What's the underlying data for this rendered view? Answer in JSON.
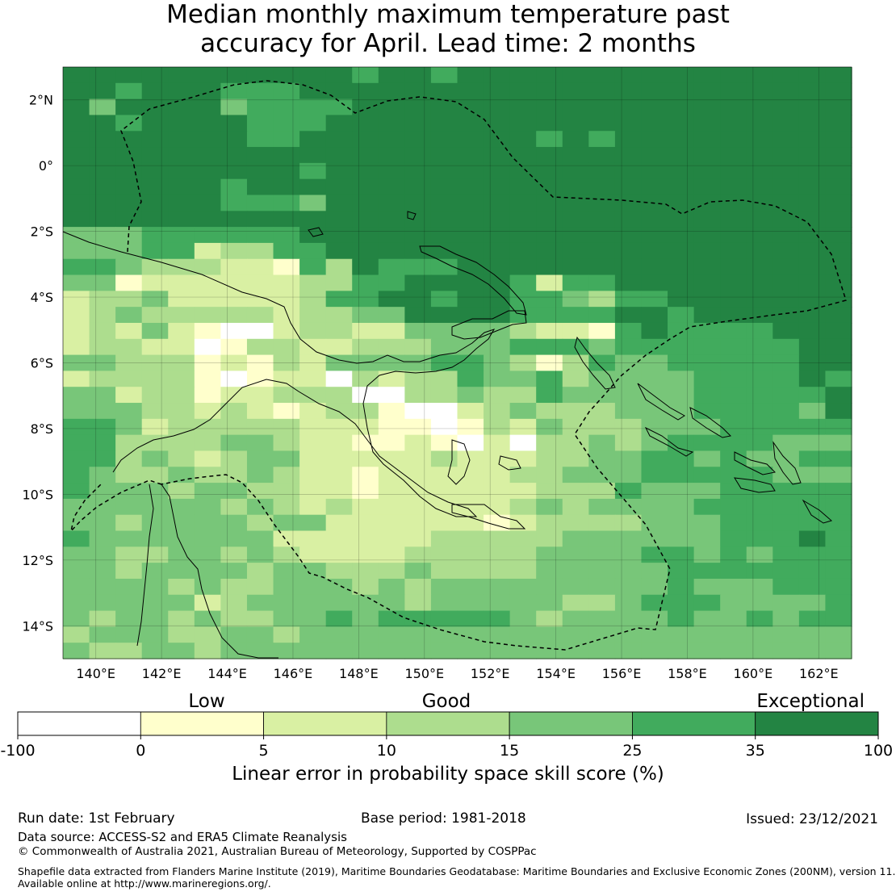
{
  "title": {
    "line1": "Median monthly maximum temperature past",
    "line2": "accuracy for April. Lead time: 2 months"
  },
  "map": {
    "lon_range": [
      139,
      163
    ],
    "lat_range": [
      -15,
      3
    ],
    "lon_ticks": [
      "140°E",
      "142°E",
      "144°E",
      "146°E",
      "148°E",
      "150°E",
      "152°E",
      "154°E",
      "156°E",
      "158°E",
      "160°E",
      "162°E"
    ],
    "lat_ticks": [
      "2°N",
      "0°",
      "2°S",
      "4°S",
      "6°S",
      "8°S",
      "10°S",
      "12°S",
      "14°S"
    ],
    "ocean_color": "#238b45",
    "grid_rows": [
      "666666666665665666666666666666",
      "665666555666666666666666666666",
      "646666455556666666666666666666",
      "665666655566666666666666666666",
      "666666655666666666565666666666",
      "666666666666666666666666666666",
      "666666666566666666666666666666",
      "666666566666666666666666666666",
      "666666555466666666666666666666",
      "666666666666666666666666666666",
      "444555555666666666666666666666",
      "444552335566666666666666666666",
      "554333221536555666666666666666",
      "441222222335566665255666666666",
      "233422222355665665543556666666",
      "234333332334466665555665666666",
      "232421002332244443221565555666",
      "233220133223334445554555555566",
      "443331213244445543135445555566",
      "233331012203233544534444555565",
      "442331223330033433544444555556",
      "444332321233100234333444555546",
      "554233333222110132433344455555",
      "553333443221121020334345555444",
      "553432344222223222334455454455",
      "543343343221222223344455555444",
      "544434433221222222333544455555",
      "444444343232222223434444555555",
      "443444434422222212333344455555",
      "544444442222223333344444455565",
      "443344343222233333444455454555",
      "443444434433343333444445555555",
      "444434334443434444444445444555",
      "444442344444434444433455544445",
      "434434334454555554344445445455",
      "344433443444444444444444444444",
      "433443444444444444444444444444"
    ]
  },
  "colorbar": {
    "title": "Linear error in probability space skill score (%)",
    "category_labels": [
      "Low",
      "Good",
      "Exceptional"
    ],
    "tick_labels": [
      "-100",
      "0",
      "5",
      "10",
      "15",
      "25",
      "35",
      "100"
    ],
    "colors": [
      "#ffffff",
      "#ffffcc",
      "#d9f0a3",
      "#addd8e",
      "#78c679",
      "#41ab5d",
      "#238443"
    ]
  },
  "footer": {
    "run_date": "Run date: 1st February",
    "base_period": "Base period: 1981-2018",
    "issued": "Issued: 23/12/2021",
    "data_source": "Data source: ACCESS-S2 and ERA5 Climate Reanalysis",
    "copyright": "© Commonwealth of Australia 2021, Australian Bureau of Meteorology, Supported by COSPPac",
    "shapefile_line1": "Shapefile data extracted from Flanders Marine Institute (2019), Maritime Boundaries Geodatabase: Maritime Boundaries and Exclusive Economic Zones (200NM), version 11.",
    "shapefile_line2": "Available online at http://www.marineregions.org/."
  }
}
